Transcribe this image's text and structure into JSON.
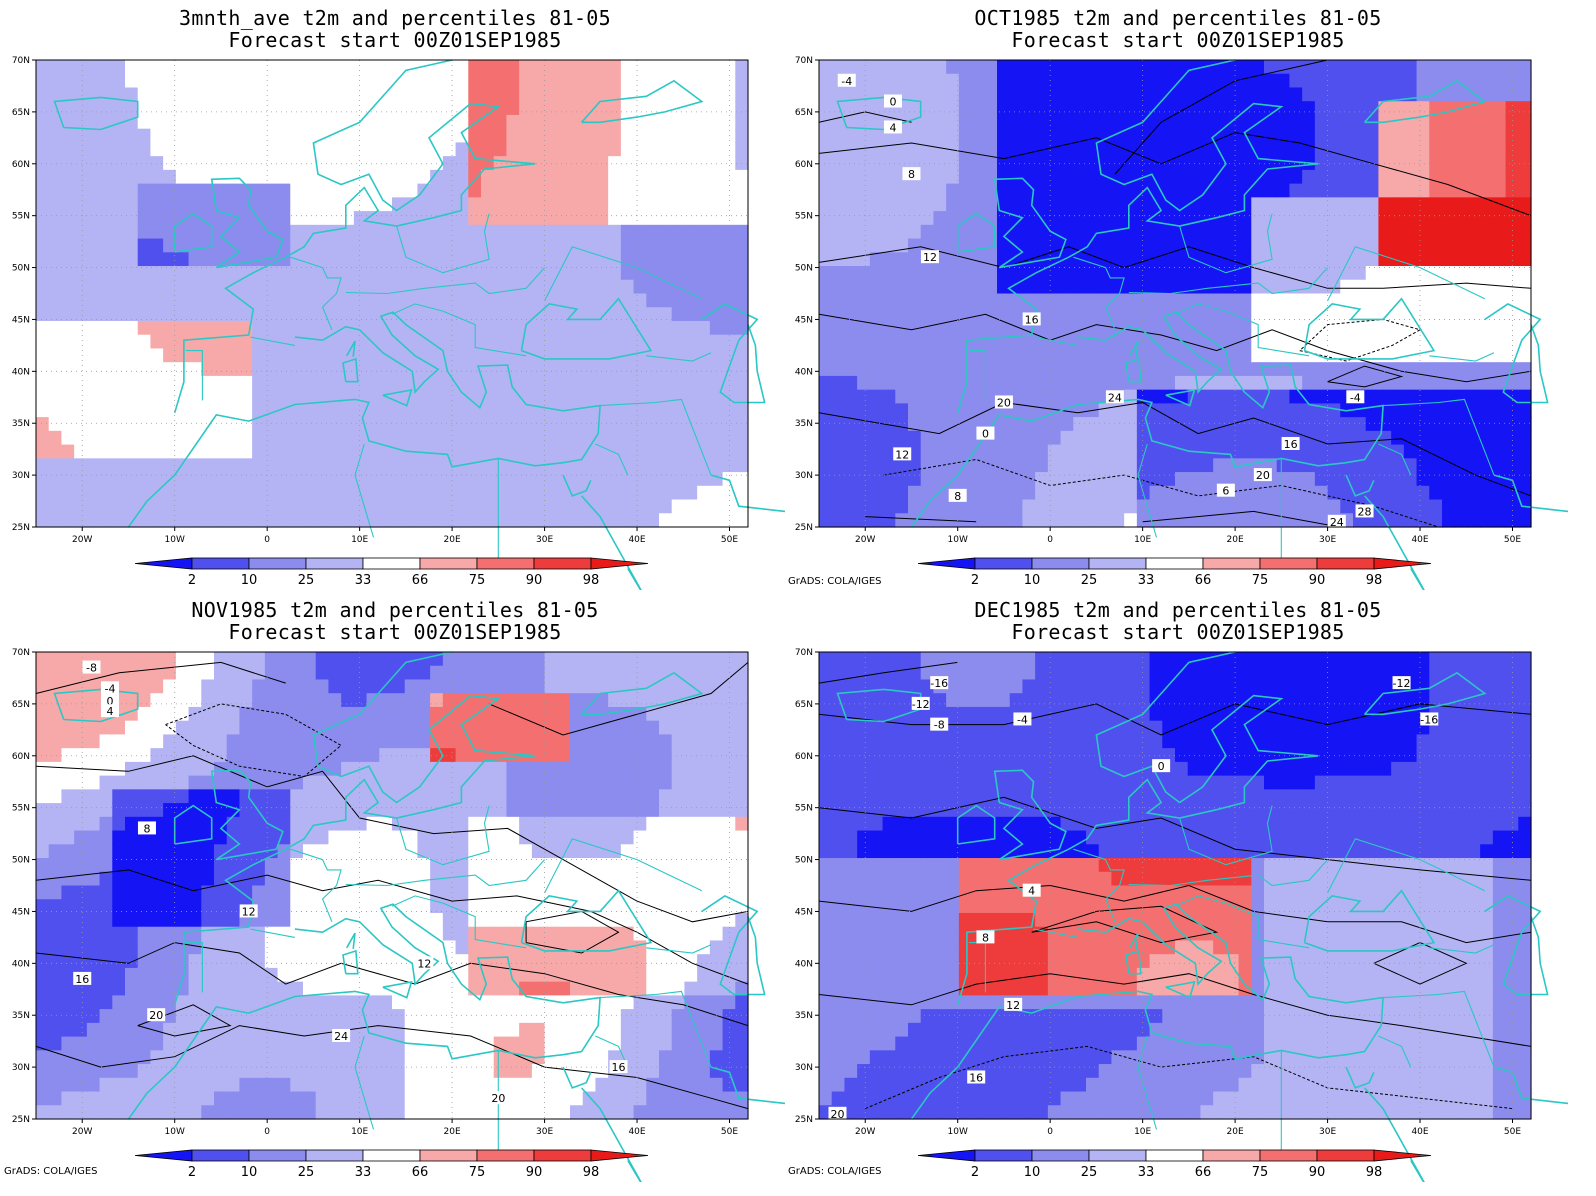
{
  "colors": {
    "p2": "#1414f5",
    "p10": "#5050ee",
    "p25": "#8c8cef",
    "p33": "#b4b4f4",
    "mid": "#ffffff",
    "p66": "#f7a8a8",
    "p75": "#f47070",
    "p90": "#ee3c3c",
    "p98": "#e81a1a",
    "coast": "#2bc7c4",
    "contour": "#000000"
  },
  "axes": {
    "lat_ticks": [
      "70N",
      "65N",
      "60N",
      "55N",
      "50N",
      "45N",
      "40N",
      "35N",
      "30N",
      "25N"
    ],
    "lon_ticks": [
      "20W",
      "10W",
      "0",
      "10E",
      "20E",
      "30E",
      "40E",
      "50E"
    ]
  },
  "legend": {
    "labels": [
      "2",
      "10",
      "25",
      "33",
      "66",
      "75",
      "90",
      "98"
    ]
  },
  "credit": "GrADS: COLA/IGES",
  "panels": [
    {
      "title_line1": "3mnth_ave t2m and percentiles 81-05",
      "title_line2": "Forecast start 00Z01SEP1985",
      "show_credit": false,
      "contour_labels": []
    },
    {
      "title_line1": "OCT1985 t2m and percentiles 81-05",
      "title_line2": "Forecast start 00Z01SEP1985",
      "show_credit": true,
      "contour_labels": [
        "-4",
        "0",
        "4",
        "8",
        "12",
        "16",
        "20",
        "24",
        "28",
        "6",
        "-4",
        "0",
        "12",
        "8",
        "16",
        "20",
        "24"
      ]
    },
    {
      "title_line1": "NOV1985 t2m and percentiles 81-05",
      "title_line2": "Forecast start 00Z01SEP1985",
      "show_credit": true,
      "contour_labels": [
        "-8",
        "-4",
        "0",
        "4",
        "8",
        "12",
        "16",
        "20",
        "24",
        "12",
        "16",
        "20"
      ]
    },
    {
      "title_line1": "DEC1985 t2m and percentiles 81-05",
      "title_line2": "Forecast start 00Z01SEP1985",
      "show_credit": true,
      "contour_labels": [
        "-12",
        "-16",
        "-8",
        "-4",
        "0",
        "4",
        "8",
        "12",
        "16",
        "-16",
        "-12",
        "20"
      ]
    }
  ]
}
